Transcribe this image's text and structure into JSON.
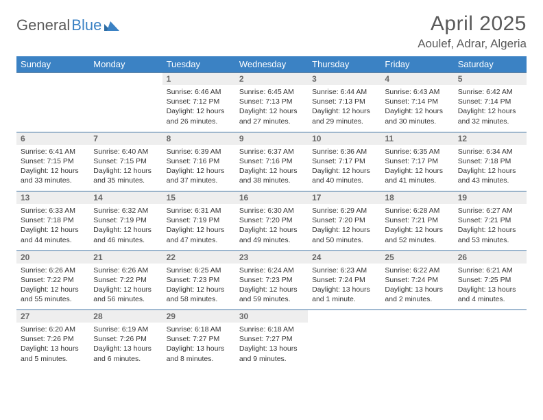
{
  "logo": {
    "text1": "General",
    "text2": "Blue"
  },
  "title": "April 2025",
  "location": "Aoulef, Adrar, Algeria",
  "colors": {
    "header_bg": "#3b82c4",
    "header_text": "#ffffff",
    "daynum_bg": "#eeeeee",
    "daynum_text": "#666666",
    "body_text": "#333333",
    "rule": "#3b6fa0",
    "logo_gray": "#5a5a5a",
    "logo_blue": "#3b82c4"
  },
  "day_headers": [
    "Sunday",
    "Monday",
    "Tuesday",
    "Wednesday",
    "Thursday",
    "Friday",
    "Saturday"
  ],
  "weeks": [
    {
      "nums": [
        "",
        "",
        "1",
        "2",
        "3",
        "4",
        "5"
      ],
      "cells": [
        {
          "empty": true
        },
        {
          "empty": true
        },
        {
          "sunrise": "Sunrise: 6:46 AM",
          "sunset": "Sunset: 7:12 PM",
          "day1": "Daylight: 12 hours",
          "day2": "and 26 minutes."
        },
        {
          "sunrise": "Sunrise: 6:45 AM",
          "sunset": "Sunset: 7:13 PM",
          "day1": "Daylight: 12 hours",
          "day2": "and 27 minutes."
        },
        {
          "sunrise": "Sunrise: 6:44 AM",
          "sunset": "Sunset: 7:13 PM",
          "day1": "Daylight: 12 hours",
          "day2": "and 29 minutes."
        },
        {
          "sunrise": "Sunrise: 6:43 AM",
          "sunset": "Sunset: 7:14 PM",
          "day1": "Daylight: 12 hours",
          "day2": "and 30 minutes."
        },
        {
          "sunrise": "Sunrise: 6:42 AM",
          "sunset": "Sunset: 7:14 PM",
          "day1": "Daylight: 12 hours",
          "day2": "and 32 minutes."
        }
      ]
    },
    {
      "nums": [
        "6",
        "7",
        "8",
        "9",
        "10",
        "11",
        "12"
      ],
      "cells": [
        {
          "sunrise": "Sunrise: 6:41 AM",
          "sunset": "Sunset: 7:15 PM",
          "day1": "Daylight: 12 hours",
          "day2": "and 33 minutes."
        },
        {
          "sunrise": "Sunrise: 6:40 AM",
          "sunset": "Sunset: 7:15 PM",
          "day1": "Daylight: 12 hours",
          "day2": "and 35 minutes."
        },
        {
          "sunrise": "Sunrise: 6:39 AM",
          "sunset": "Sunset: 7:16 PM",
          "day1": "Daylight: 12 hours",
          "day2": "and 37 minutes."
        },
        {
          "sunrise": "Sunrise: 6:37 AM",
          "sunset": "Sunset: 7:16 PM",
          "day1": "Daylight: 12 hours",
          "day2": "and 38 minutes."
        },
        {
          "sunrise": "Sunrise: 6:36 AM",
          "sunset": "Sunset: 7:17 PM",
          "day1": "Daylight: 12 hours",
          "day2": "and 40 minutes."
        },
        {
          "sunrise": "Sunrise: 6:35 AM",
          "sunset": "Sunset: 7:17 PM",
          "day1": "Daylight: 12 hours",
          "day2": "and 41 minutes."
        },
        {
          "sunrise": "Sunrise: 6:34 AM",
          "sunset": "Sunset: 7:18 PM",
          "day1": "Daylight: 12 hours",
          "day2": "and 43 minutes."
        }
      ]
    },
    {
      "nums": [
        "13",
        "14",
        "15",
        "16",
        "17",
        "18",
        "19"
      ],
      "cells": [
        {
          "sunrise": "Sunrise: 6:33 AM",
          "sunset": "Sunset: 7:18 PM",
          "day1": "Daylight: 12 hours",
          "day2": "and 44 minutes."
        },
        {
          "sunrise": "Sunrise: 6:32 AM",
          "sunset": "Sunset: 7:19 PM",
          "day1": "Daylight: 12 hours",
          "day2": "and 46 minutes."
        },
        {
          "sunrise": "Sunrise: 6:31 AM",
          "sunset": "Sunset: 7:19 PM",
          "day1": "Daylight: 12 hours",
          "day2": "and 47 minutes."
        },
        {
          "sunrise": "Sunrise: 6:30 AM",
          "sunset": "Sunset: 7:20 PM",
          "day1": "Daylight: 12 hours",
          "day2": "and 49 minutes."
        },
        {
          "sunrise": "Sunrise: 6:29 AM",
          "sunset": "Sunset: 7:20 PM",
          "day1": "Daylight: 12 hours",
          "day2": "and 50 minutes."
        },
        {
          "sunrise": "Sunrise: 6:28 AM",
          "sunset": "Sunset: 7:21 PM",
          "day1": "Daylight: 12 hours",
          "day2": "and 52 minutes."
        },
        {
          "sunrise": "Sunrise: 6:27 AM",
          "sunset": "Sunset: 7:21 PM",
          "day1": "Daylight: 12 hours",
          "day2": "and 53 minutes."
        }
      ]
    },
    {
      "nums": [
        "20",
        "21",
        "22",
        "23",
        "24",
        "25",
        "26"
      ],
      "cells": [
        {
          "sunrise": "Sunrise: 6:26 AM",
          "sunset": "Sunset: 7:22 PM",
          "day1": "Daylight: 12 hours",
          "day2": "and 55 minutes."
        },
        {
          "sunrise": "Sunrise: 6:26 AM",
          "sunset": "Sunset: 7:22 PM",
          "day1": "Daylight: 12 hours",
          "day2": "and 56 minutes."
        },
        {
          "sunrise": "Sunrise: 6:25 AM",
          "sunset": "Sunset: 7:23 PM",
          "day1": "Daylight: 12 hours",
          "day2": "and 58 minutes."
        },
        {
          "sunrise": "Sunrise: 6:24 AM",
          "sunset": "Sunset: 7:23 PM",
          "day1": "Daylight: 12 hours",
          "day2": "and 59 minutes."
        },
        {
          "sunrise": "Sunrise: 6:23 AM",
          "sunset": "Sunset: 7:24 PM",
          "day1": "Daylight: 13 hours",
          "day2": "and 1 minute."
        },
        {
          "sunrise": "Sunrise: 6:22 AM",
          "sunset": "Sunset: 7:24 PM",
          "day1": "Daylight: 13 hours",
          "day2": "and 2 minutes."
        },
        {
          "sunrise": "Sunrise: 6:21 AM",
          "sunset": "Sunset: 7:25 PM",
          "day1": "Daylight: 13 hours",
          "day2": "and 4 minutes."
        }
      ]
    },
    {
      "nums": [
        "27",
        "28",
        "29",
        "30",
        "",
        "",
        ""
      ],
      "cells": [
        {
          "sunrise": "Sunrise: 6:20 AM",
          "sunset": "Sunset: 7:26 PM",
          "day1": "Daylight: 13 hours",
          "day2": "and 5 minutes."
        },
        {
          "sunrise": "Sunrise: 6:19 AM",
          "sunset": "Sunset: 7:26 PM",
          "day1": "Daylight: 13 hours",
          "day2": "and 6 minutes."
        },
        {
          "sunrise": "Sunrise: 6:18 AM",
          "sunset": "Sunset: 7:27 PM",
          "day1": "Daylight: 13 hours",
          "day2": "and 8 minutes."
        },
        {
          "sunrise": "Sunrise: 6:18 AM",
          "sunset": "Sunset: 7:27 PM",
          "day1": "Daylight: 13 hours",
          "day2": "and 9 minutes."
        },
        {
          "empty": true
        },
        {
          "empty": true
        },
        {
          "empty": true
        }
      ]
    }
  ]
}
